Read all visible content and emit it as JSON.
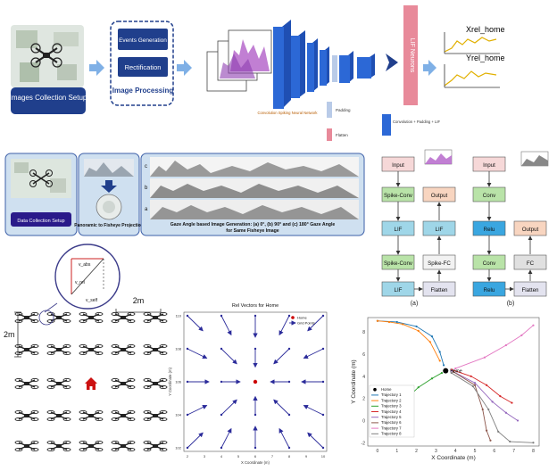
{
  "pipeline": {
    "images_collection": "Images Collection Setup",
    "events_generation": "Events Generation",
    "rectification": "Rectification",
    "image_processing": "Image Processing",
    "cnn_label": "Convolution Spiking Neural Network",
    "padding": "Padding",
    "flatten": "Flatten",
    "conv_padding_lif": "Convolution + Padding + LIF",
    "lif_neurons": "LIF Neurons",
    "out_x": "Xrel_home",
    "out_y": "Yrel_home"
  },
  "middle": {
    "data_collection": "Data Collection Setup",
    "panoramic": "Panoramic to Fisheye Projection",
    "gaze_caption_1": "Gaze Angle based Image Generation: (a) 0°, (b) 90° and (c) 180° Gaze Angle",
    "gaze_caption_2": "for Same Fisheye Image",
    "gaze_a": "a",
    "gaze_b": "b",
    "gaze_c": "c"
  },
  "architectures": {
    "a": {
      "label": "(a)",
      "left": [
        "Input",
        "Spike-Conv",
        "LIF",
        "Spike-Conv",
        "LIF"
      ],
      "right": [
        "Output",
        "LIF",
        "Spike-FC",
        "Flatten"
      ]
    },
    "b": {
      "label": "(b)",
      "left": [
        "Input",
        "Conv",
        "Relu",
        "Conv",
        "Relu"
      ],
      "right": [
        "Output",
        "FC",
        "Flatten"
      ]
    }
  },
  "grid": {
    "dist_h": "2m",
    "dist_v": "2m",
    "v_abs": "v_abs",
    "v_rel": "v_rel",
    "v_self": "v_self"
  },
  "chart_data": [
    {
      "type": "scatter",
      "title": "Rel Vectors for Home",
      "xlabel": "X Coordinate (m)",
      "ylabel": "Y Coordinate (m)",
      "xlim": [
        2,
        10
      ],
      "ylim": [
        102,
        110
      ],
      "xticks": [
        "2",
        "3",
        "4",
        "5",
        "6",
        "7",
        "8",
        "9",
        "10"
      ],
      "yticks": [
        "102",
        "104",
        "106",
        "108",
        "110"
      ],
      "legend": [
        "Home",
        "Grid Points"
      ],
      "legend_position": "top-right",
      "home": [
        6,
        106
      ],
      "grid_points": [
        [
          2,
          102
        ],
        [
          4,
          102
        ],
        [
          6,
          102
        ],
        [
          8,
          102
        ],
        [
          10,
          102
        ],
        [
          2,
          104
        ],
        [
          4,
          104
        ],
        [
          6,
          104
        ],
        [
          8,
          104
        ],
        [
          10,
          104
        ],
        [
          2,
          106
        ],
        [
          4,
          106
        ],
        [
          8,
          106
        ],
        [
          10,
          106
        ],
        [
          2,
          108
        ],
        [
          4,
          108
        ],
        [
          6,
          108
        ],
        [
          8,
          108
        ],
        [
          10,
          108
        ],
        [
          2,
          110
        ],
        [
          4,
          110
        ],
        [
          6,
          110
        ],
        [
          8,
          110
        ],
        [
          10,
          110
        ]
      ],
      "colors": {
        "home": "#cc0000",
        "vectors": "#2b2b9a"
      }
    },
    {
      "type": "line",
      "xlabel": "X Coordinate (m)",
      "ylabel": "Y Coordinate (m)",
      "xlim": [
        -0.5,
        8.3
      ],
      "ylim": [
        -2.3,
        9.3
      ],
      "xticks": [
        0,
        1,
        2,
        3,
        4,
        5,
        6,
        7,
        8
      ],
      "yticks": [
        -2,
        0,
        2,
        4,
        6,
        8
      ],
      "home_label": "Home",
      "home": [
        3.5,
        4.5
      ],
      "legend_position": "bottom-left",
      "series": [
        {
          "name": "Home",
          "color": "#000000",
          "values": []
        },
        {
          "name": "Trajectory 1",
          "color": "#1f77b4",
          "values": [
            [
              0,
              9
            ],
            [
              1,
              8.9
            ],
            [
              2,
              8.5
            ],
            [
              2.8,
              7.6
            ],
            [
              3.2,
              6.2
            ],
            [
              3.4,
              5
            ]
          ]
        },
        {
          "name": "Trajectory 2",
          "color": "#ff7f0e",
          "values": [
            [
              0,
              9
            ],
            [
              0.6,
              8.9
            ],
            [
              1.3,
              8.7
            ],
            [
              2.1,
              8.1
            ],
            [
              2.7,
              7.1
            ],
            [
              3.2,
              5.4
            ]
          ]
        },
        {
          "name": "Trajectory 3",
          "color": "#2ca02c",
          "values": [
            [
              0,
              0
            ],
            [
              0.8,
              1
            ],
            [
              1.5,
              2
            ],
            [
              2.1,
              3
            ],
            [
              2.8,
              3.8
            ],
            [
              3.3,
              4.3
            ]
          ]
        },
        {
          "name": "Trajectory 4",
          "color": "#d62728",
          "values": [
            [
              3.8,
              4.6
            ],
            [
              4.8,
              4
            ],
            [
              5.6,
              3.2
            ],
            [
              6.3,
              2.2
            ],
            [
              6.9,
              1.6
            ]
          ]
        },
        {
          "name": "Trajectory 5",
          "color": "#9467bd",
          "values": [
            [
              3.8,
              4.5
            ],
            [
              5,
              3.4
            ],
            [
              5.9,
              1.7
            ],
            [
              6.6,
              0.7
            ],
            [
              7.2,
              0
            ]
          ]
        },
        {
          "name": "Trajectory 6",
          "color": "#8c564b",
          "values": [
            [
              3.9,
              4.4
            ],
            [
              5,
              3.2
            ],
            [
              5.4,
              1
            ],
            [
              5.6,
              -0.9
            ],
            [
              5.8,
              -1.8
            ]
          ]
        },
        {
          "name": "Trajectory 7",
          "color": "#e377c2",
          "values": [
            [
              4,
              4.7
            ],
            [
              5.5,
              5.7
            ],
            [
              6.6,
              6.8
            ],
            [
              7.4,
              7.7
            ],
            [
              8,
              8.6
            ]
          ]
        },
        {
          "name": "Trajectory 8",
          "color": "#7f7f7f",
          "values": [
            [
              3.8,
              4.3
            ],
            [
              4.9,
              3.1
            ],
            [
              5.7,
              1
            ],
            [
              6.2,
              -1
            ],
            [
              6.8,
              -1.9
            ],
            [
              8,
              -2
            ]
          ]
        }
      ]
    }
  ]
}
